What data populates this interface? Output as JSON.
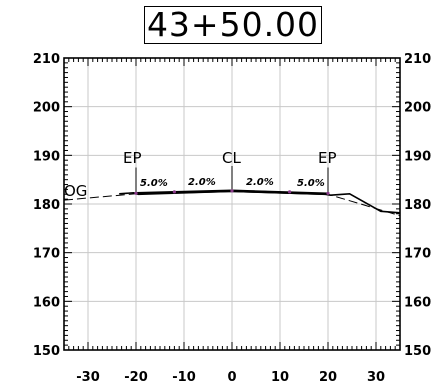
{
  "station": "43+50.00",
  "chart_data": {
    "type": "cross-section",
    "xlim": [
      -35,
      35
    ],
    "ylim": [
      150,
      210
    ],
    "x_ticks": [
      -30,
      -20,
      -10,
      0,
      10,
      20,
      30
    ],
    "y_ticks": [
      150,
      160,
      170,
      180,
      190,
      200,
      210
    ],
    "grid": true,
    "labels": {
      "og": "OG",
      "cl": "CL",
      "ep_left": "EP",
      "ep_right": "EP"
    },
    "slopes": [
      "5.0%",
      "2.0%",
      "2.0%",
      "5.0%"
    ],
    "series": [
      {
        "name": "",
        "style": "dashed",
        "x": [
          -35,
          -20,
          -5,
          5,
          20,
          35
        ],
        "y": [
          180.8,
          182.1,
          182.6,
          182.7,
          182.0,
          177.6
        ]
      },
      {
        "name": "",
        "style": "solid",
        "x": [
          -23.5,
          -20.5,
          -19.5,
          0,
          19.5,
          20.5,
          24.5,
          31,
          35
        ],
        "y": [
          182.1,
          182.3,
          182.0,
          182.6,
          182.0,
          181.8,
          182.1,
          178.5,
          178.2
        ]
      }
    ]
  }
}
